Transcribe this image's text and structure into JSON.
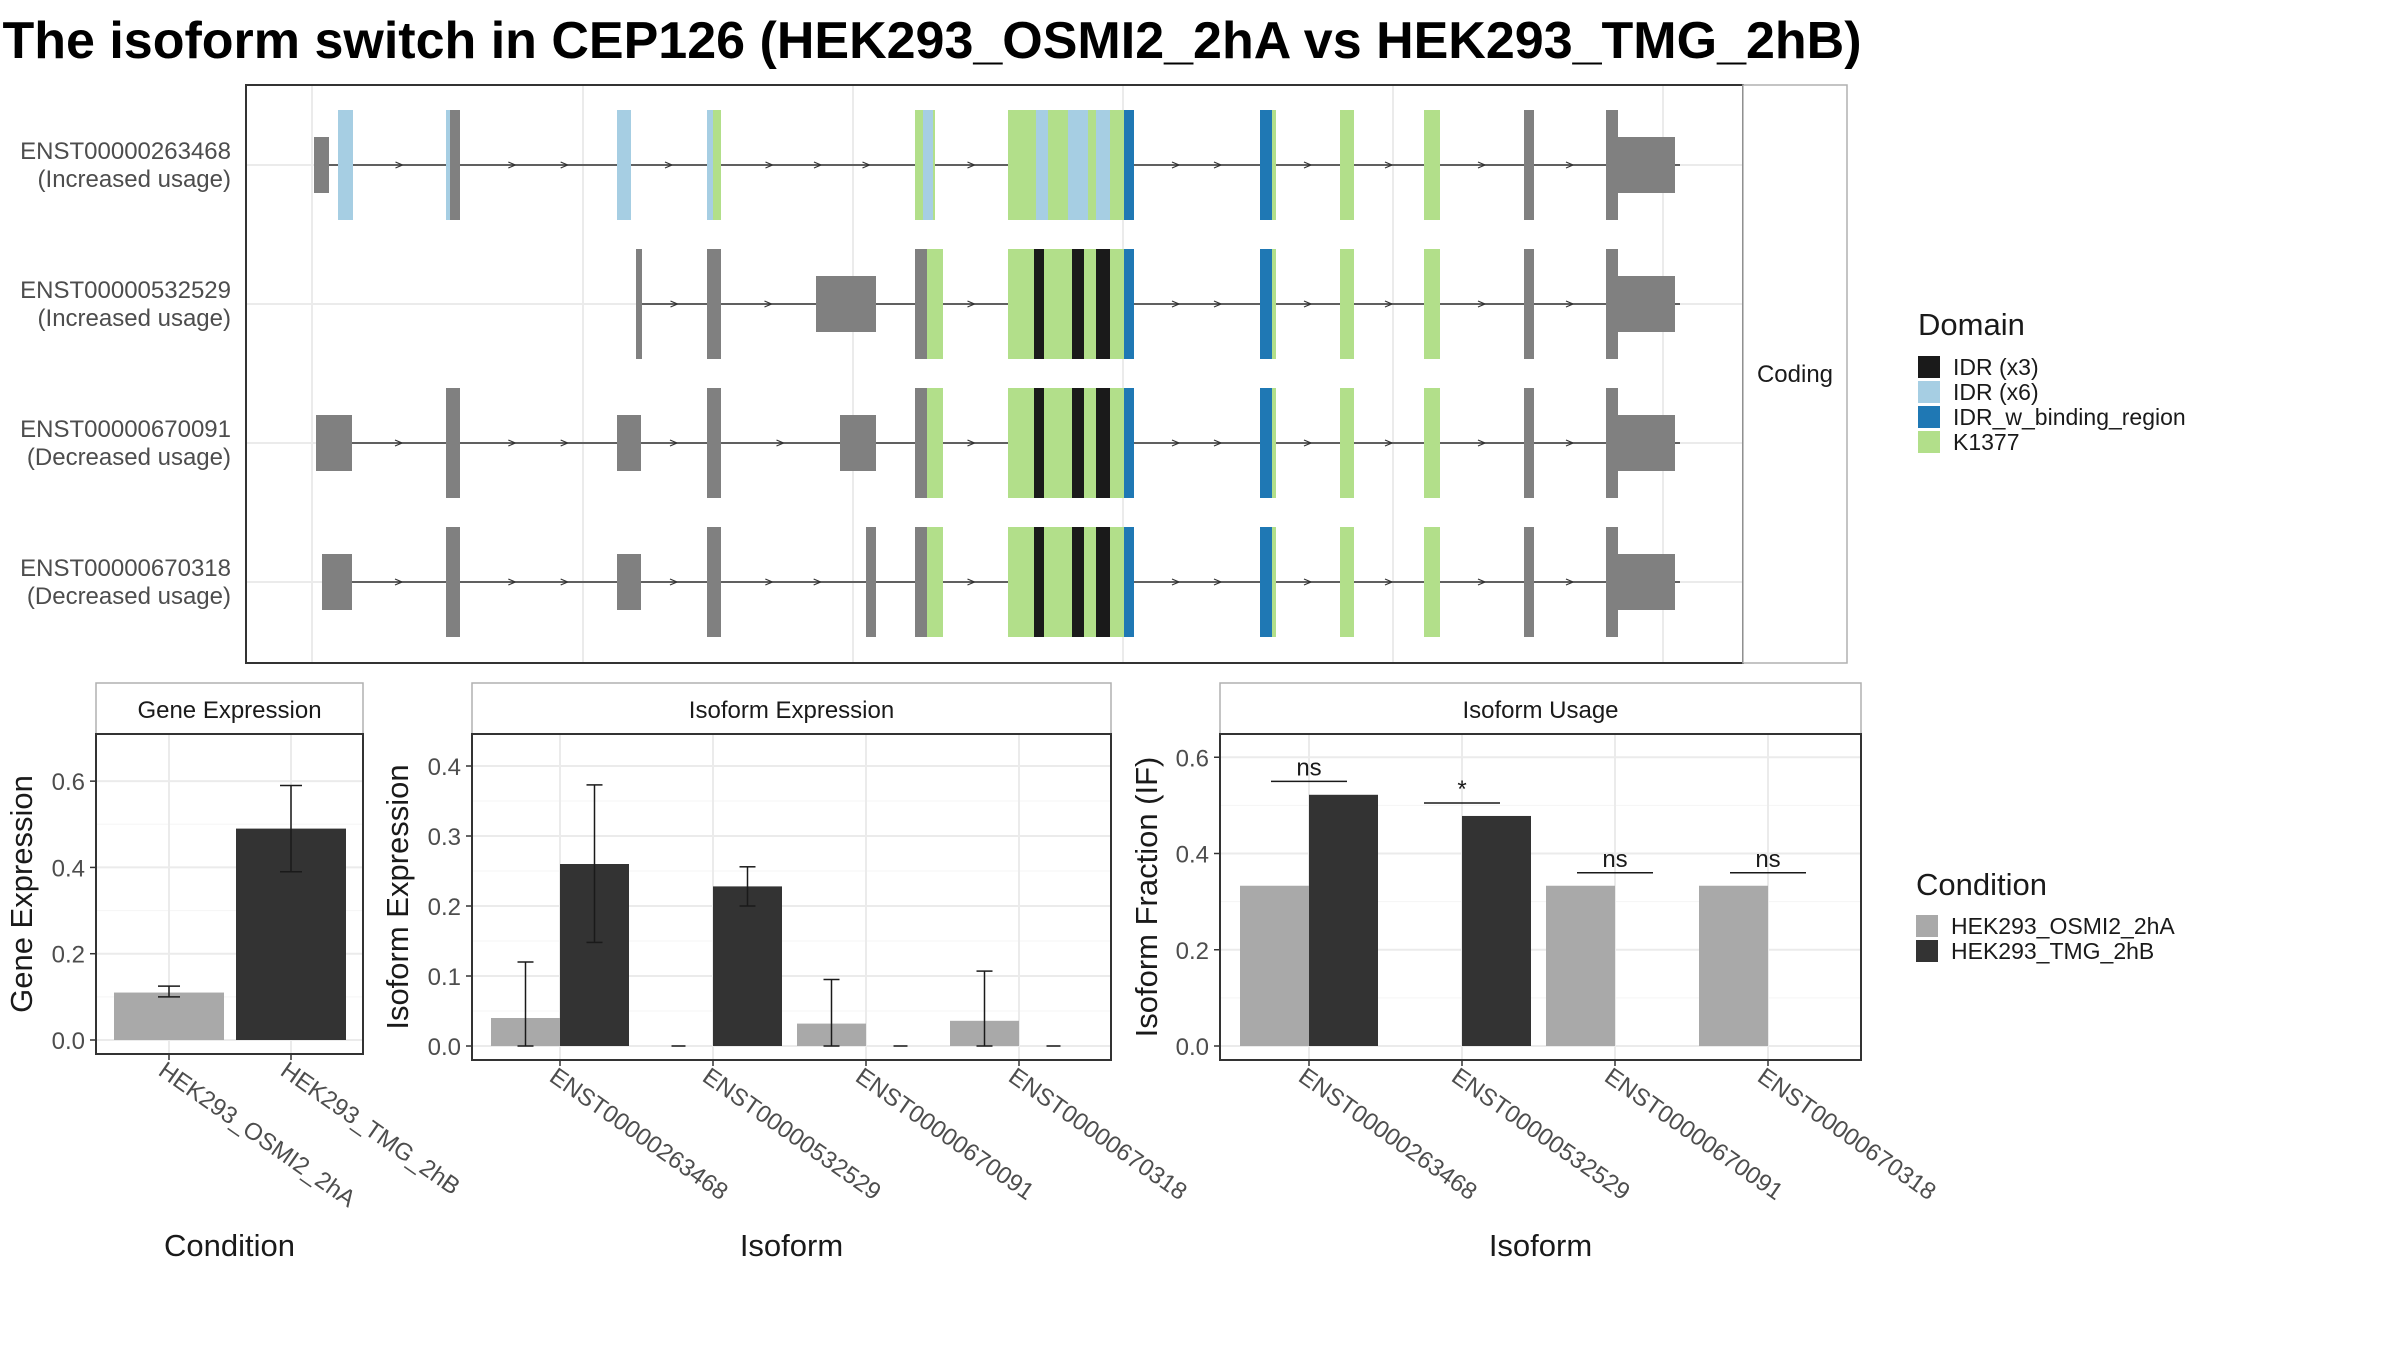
{
  "title": "The isoform switch in CEP126 (HEK293_OSMI2_2hA vs HEK293_TMG_2hB)",
  "colors": {
    "intron": "#333333",
    "exon_noncoding": "#808080",
    "IDR (x3)": "#1a1a1a",
    "IDR (x6)": "#a6cee3",
    "IDR_w_binding_region": "#1f78b4",
    "K1377": "#b2df8a",
    "HEK293_OSMI2_2hA": "#a9a9a9",
    "HEK293_TMG_2hB": "#333333",
    "panel_border": "#333333",
    "strip_border": "#b0b0b0",
    "grid": "#ebebeb"
  },
  "structure": {
    "facet_label": "Coding",
    "transcripts": [
      {
        "id": "ENST00000263468",
        "usage": "(Increased usage)"
      },
      {
        "id": "ENST00000532529",
        "usage": "(Increased usage)"
      },
      {
        "id": "ENST00000670091",
        "usage": "(Decreased usage)"
      },
      {
        "id": "ENST00000670318",
        "usage": "(Decreased usage)"
      }
    ],
    "legend_title": "Domain",
    "legend_items": [
      "IDR (x3)",
      "IDR (x6)",
      "IDR_w_binding_region",
      "K1377"
    ]
  },
  "chart_data": [
    {
      "type": "bar",
      "title": "Gene Expression",
      "xlabel": "Condition",
      "ylabel": "Gene Expression",
      "categories": [
        "HEK293_OSMI2_2hA",
        "HEK293_TMG_2hB"
      ],
      "values": [
        0.11,
        0.49
      ],
      "error_low": [
        0.1,
        0.39
      ],
      "error_high": [
        0.125,
        0.59
      ],
      "yticks": [
        "0.0",
        "0.2",
        "0.4",
        "0.6"
      ],
      "ylim": [
        0,
        0.7
      ]
    },
    {
      "type": "bar",
      "title": "Isoform Expression",
      "xlabel": "Isoform",
      "ylabel": "Isoform Expression",
      "categories": [
        "ENST00000263468",
        "ENST00000532529",
        "ENST00000670091",
        "ENST00000670318"
      ],
      "series": [
        {
          "name": "HEK293_OSMI2_2hA",
          "values": [
            0.04,
            0.0,
            0.032,
            0.036
          ],
          "error_low": [
            0.0,
            0.0,
            0.0,
            0.0
          ],
          "error_high": [
            0.12,
            0.0,
            0.095,
            0.107
          ]
        },
        {
          "name": "HEK293_TMG_2hB",
          "values": [
            0.26,
            0.228,
            0.0,
            0.0
          ],
          "error_low": [
            0.148,
            0.2,
            0.0,
            0.0
          ],
          "error_high": [
            0.373,
            0.256,
            0.0,
            0.0
          ]
        }
      ],
      "yticks": [
        "0.0",
        "0.1",
        "0.2",
        "0.3",
        "0.4"
      ],
      "ylim": [
        0,
        0.44
      ]
    },
    {
      "type": "bar",
      "title": "Isoform Usage",
      "xlabel": "Isoform",
      "ylabel": "Isoform Fraction (IF)",
      "categories": [
        "ENST00000263468",
        "ENST00000532529",
        "ENST00000670091",
        "ENST00000670318"
      ],
      "series": [
        {
          "name": "HEK293_OSMI2_2hA",
          "values": [
            0.333,
            0.0,
            0.333,
            0.333
          ]
        },
        {
          "name": "HEK293_TMG_2hB",
          "values": [
            0.522,
            0.478,
            0.0,
            0.0
          ]
        }
      ],
      "significance": [
        "ns",
        "*",
        "ns",
        "ns"
      ],
      "significance_y": [
        0.55,
        0.505,
        0.36,
        0.36
      ],
      "yticks": [
        "0.0",
        "0.2",
        "0.4",
        "0.6"
      ],
      "ylim": [
        0,
        0.64
      ]
    }
  ],
  "condition_legend": {
    "title": "Condition",
    "items": [
      "HEK293_OSMI2_2hA",
      "HEK293_TMG_2hB"
    ]
  }
}
